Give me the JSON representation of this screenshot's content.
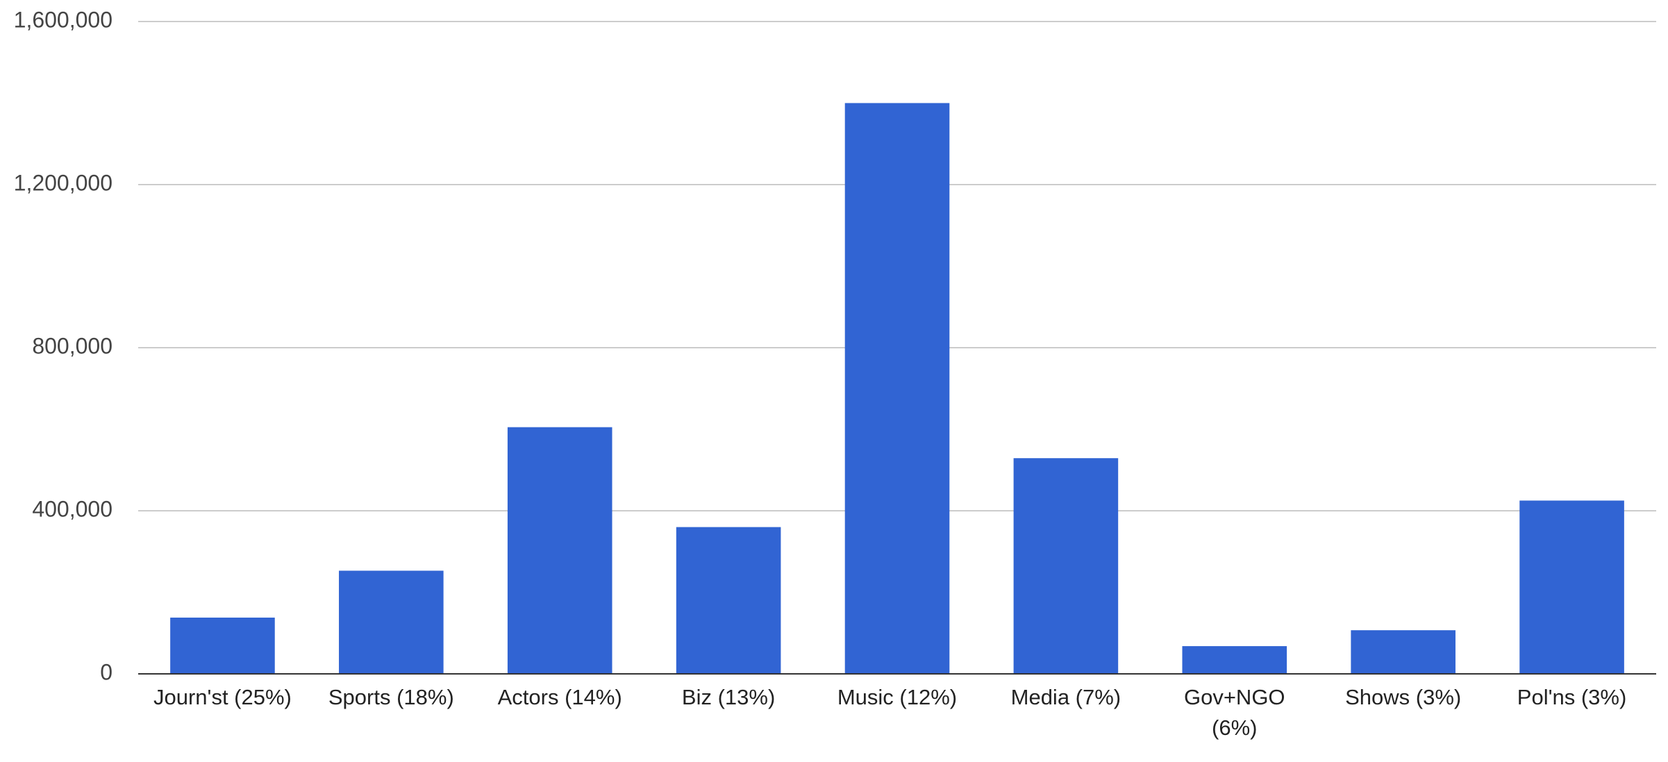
{
  "chart_data": {
    "type": "bar",
    "categories": [
      "Journ'st (25%)",
      "Sports (18%)",
      "Actors (14%)",
      "Biz (13%)",
      "Music (12%)",
      "Media (7%)",
      "Gov+NGO (6%)",
      "Shows (3%)",
      "Pol'ns (3%)"
    ],
    "values": [
      138000,
      253000,
      605000,
      360000,
      1400000,
      529000,
      68000,
      107000,
      425000
    ],
    "color": "#3164d3",
    "ylim": [
      0,
      1600000
    ],
    "yticks": [
      0,
      {
        "value": 400000,
        "label": "400,000"
      },
      {
        "value": 800000,
        "label": "800,000"
      },
      {
        "value": 1200000,
        "label": "1,200,000"
      },
      {
        "value": 1600000,
        "label": "1,600,000"
      }
    ],
    "grid": true
  }
}
